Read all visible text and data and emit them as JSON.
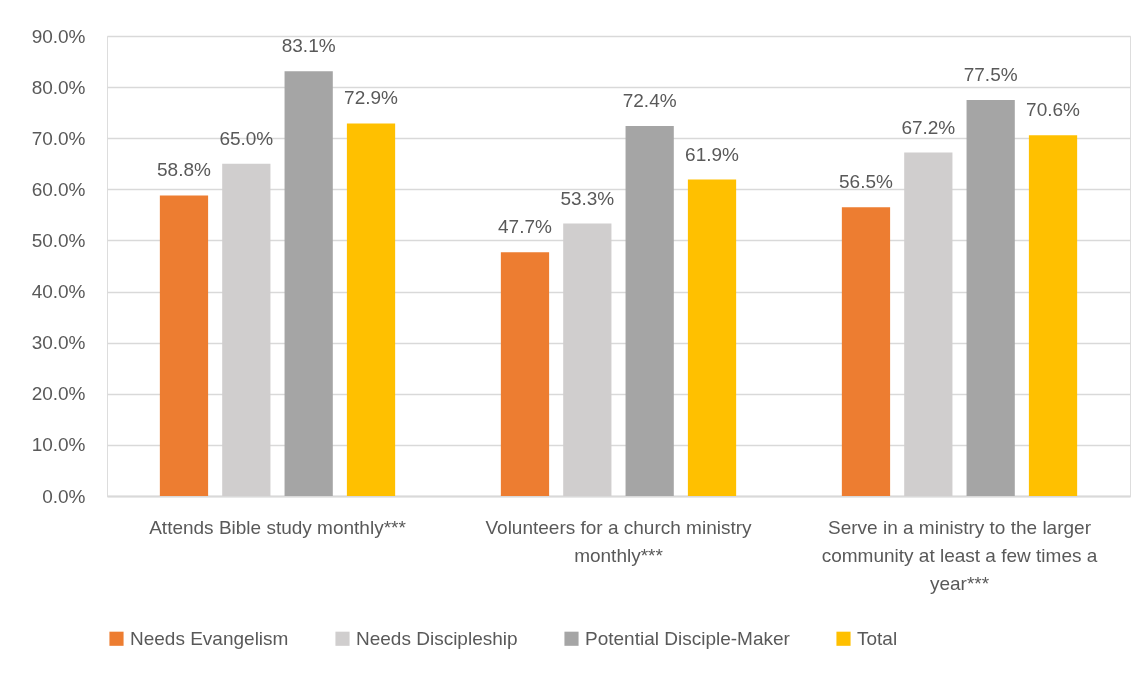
{
  "chart_data": {
    "type": "bar",
    "categories": [
      "Attends Bible study monthly***",
      "Volunteers for a church ministry monthly***",
      "Serve in a ministry to the larger community at least a few times a year***"
    ],
    "series": [
      {
        "name": "Needs Evangelism",
        "color": "#ed7d31",
        "values": [
          58.8,
          47.7,
          56.5
        ],
        "value_labels": [
          "58.8%",
          "47.7%",
          "56.5%"
        ]
      },
      {
        "name": "Needs Discipleship",
        "color": "#d0cece",
        "values": [
          65.0,
          53.3,
          67.2
        ],
        "value_labels": [
          "65.0%",
          "53.3%",
          "67.2%"
        ]
      },
      {
        "name": "Potential Disciple-Maker",
        "color": "#a5a5a5",
        "values": [
          83.1,
          72.4,
          77.5
        ],
        "value_labels": [
          "83.1%",
          "72.4%",
          "77.5%"
        ]
      },
      {
        "name": "Total",
        "color": "#ffc000",
        "values": [
          72.9,
          61.9,
          70.6
        ],
        "value_labels": [
          "72.9%",
          "61.9%",
          "70.6%"
        ]
      }
    ],
    "ylim": [
      0,
      90
    ],
    "yticks": [
      {
        "value": 0,
        "label": "0.0%"
      },
      {
        "value": 10,
        "label": "10.0%"
      },
      {
        "value": 20,
        "label": "20.0%"
      },
      {
        "value": 30,
        "label": "30.0%"
      },
      {
        "value": 40,
        "label": "40.0%"
      },
      {
        "value": 50,
        "label": "50.0%"
      },
      {
        "value": 60,
        "label": "60.0%"
      },
      {
        "value": 70,
        "label": "70.0%"
      },
      {
        "value": 80,
        "label": "80.0%"
      },
      {
        "value": 90,
        "label": "90.0%"
      }
    ],
    "grid": "y",
    "legend": "bottom"
  }
}
